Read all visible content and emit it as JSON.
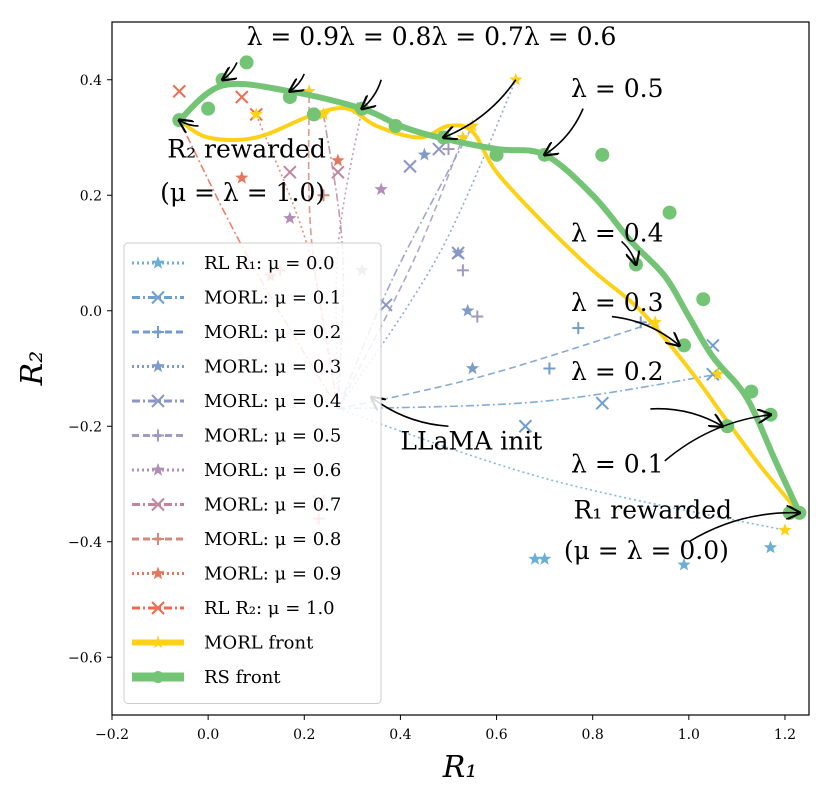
{
  "chart_data": {
    "type": "line",
    "title": "",
    "xlabel": "R₁",
    "ylabel": "R₂",
    "xlim": [
      -0.2,
      1.25
    ],
    "ylim": [
      -0.7,
      0.5
    ],
    "xticks": [
      -0.2,
      0.0,
      0.2,
      0.4,
      0.6,
      0.8,
      1.0,
      1.2
    ],
    "xtick_labels": [
      "−0.2",
      "0.0",
      "0.2",
      "0.4",
      "0.6",
      "0.8",
      "1.0",
      "1.2"
    ],
    "yticks": [
      -0.6,
      -0.4,
      -0.2,
      0.0,
      0.2,
      0.4
    ],
    "ytick_labels": [
      "−0.6",
      "−0.4",
      "−0.2",
      "0.0",
      "0.2",
      "0.4"
    ],
    "grid": false,
    "legend_position": "lower-left",
    "init_point": [
      0.27,
      -0.17
    ],
    "series": [
      {
        "name": "RL R₁: μ = 0.0",
        "color": "#6baed6",
        "dash": "dotted",
        "marker": "star",
        "points": [
          [
            0.68,
            -0.43
          ],
          [
            0.99,
            -0.44
          ],
          [
            1.17,
            -0.41
          ],
          [
            0.7,
            -0.43
          ]
        ],
        "end": [
          1.2,
          -0.38
        ]
      },
      {
        "name": "MORL: μ = 0.1",
        "color": "#6f9fcf",
        "dash": "dashdot",
        "marker": "x",
        "points": [
          [
            0.82,
            -0.16
          ],
          [
            1.05,
            -0.06
          ],
          [
            0.66,
            -0.2
          ],
          [
            1.05,
            -0.11
          ]
        ],
        "end": [
          1.06,
          -0.11
        ]
      },
      {
        "name": "MORL: μ = 0.2",
        "color": "#729ccc",
        "dash": "dashed",
        "marker": "plus",
        "points": [
          [
            0.77,
            -0.03
          ],
          [
            0.71,
            -0.1
          ],
          [
            0.9,
            -0.02
          ]
        ],
        "end": [
          0.93,
          -0.02
        ]
      },
      {
        "name": "MORL: μ = 0.3",
        "color": "#7f9bc9",
        "dash": "dotted",
        "marker": "star",
        "points": [
          [
            0.45,
            0.27
          ],
          [
            0.54,
            0.0
          ],
          [
            0.55,
            -0.1
          ],
          [
            0.52,
            0.1
          ]
        ],
        "end": [
          0.64,
          0.4
        ]
      },
      {
        "name": "MORL: μ = 0.4",
        "color": "#8c96c4",
        "dash": "dashdot",
        "marker": "x",
        "points": [
          [
            0.42,
            0.25
          ],
          [
            0.37,
            0.01
          ],
          [
            0.52,
            0.1
          ],
          [
            0.48,
            0.28
          ]
        ],
        "end": [
          0.55,
          0.32
        ]
      },
      {
        "name": "MORL: μ = 0.5",
        "color": "#a099c0",
        "dash": "dashed",
        "marker": "plus",
        "points": [
          [
            0.5,
            0.28
          ],
          [
            0.53,
            0.07
          ],
          [
            0.56,
            -0.01
          ]
        ],
        "end": [
          0.53,
          0.3
        ]
      },
      {
        "name": "MORL: μ = 0.6",
        "color": "#b08eb5",
        "dash": "dotted",
        "marker": "star",
        "points": [
          [
            0.36,
            0.21
          ],
          [
            0.32,
            0.07
          ],
          [
            0.17,
            0.16
          ],
          [
            0.31,
            0.35
          ]
        ],
        "end": [
          0.32,
          0.35
        ]
      },
      {
        "name": "MORL: μ = 0.7",
        "color": "#c2849c",
        "dash": "dashdot",
        "marker": "x",
        "points": [
          [
            0.27,
            0.24
          ],
          [
            0.17,
            0.24
          ],
          [
            0.23,
            -0.33
          ]
        ],
        "end": [
          0.24,
          0.34
        ]
      },
      {
        "name": "MORL: μ = 0.8",
        "color": "#d6887a",
        "dash": "dashed",
        "marker": "plus",
        "points": [
          [
            0.24,
            0.2
          ],
          [
            0.15,
            0.07
          ],
          [
            0.23,
            -0.36
          ]
        ],
        "end": [
          0.21,
          0.38
        ]
      },
      {
        "name": "MORL: μ = 0.9",
        "color": "#e5775e",
        "dash": "dotted",
        "marker": "star",
        "points": [
          [
            0.27,
            0.26
          ],
          [
            0.07,
            0.23
          ],
          [
            0.13,
            0.06
          ]
        ],
        "end": [
          0.1,
          0.34
        ]
      },
      {
        "name": "RL R₂: μ = 1.0",
        "color": "#ef6a4c",
        "dash": "dashdot",
        "marker": "x",
        "points": [
          [
            -0.06,
            0.38
          ],
          [
            0.07,
            0.37
          ],
          [
            0.1,
            0.34
          ]
        ],
        "end": [
          -0.06,
          0.33
        ]
      }
    ],
    "morl_front": {
      "name": "MORL front",
      "color": "#fcd116",
      "points": [
        [
          -0.06,
          0.33
        ],
        [
          0.0,
          0.3
        ],
        [
          0.1,
          0.3
        ],
        [
          0.22,
          0.34
        ],
        [
          0.29,
          0.35
        ],
        [
          0.35,
          0.32
        ],
        [
          0.44,
          0.3
        ],
        [
          0.5,
          0.32
        ],
        [
          0.55,
          0.31
        ],
        [
          0.6,
          0.24
        ],
        [
          0.7,
          0.15
        ],
        [
          0.8,
          0.07
        ],
        [
          0.9,
          0.0
        ],
        [
          1.0,
          -0.1
        ],
        [
          1.07,
          -0.18
        ],
        [
          1.15,
          -0.27
        ],
        [
          1.23,
          -0.35
        ]
      ]
    },
    "rs_front": {
      "name": "RS front",
      "color": "#74c476",
      "points": [
        [
          -0.06,
          0.33
        ],
        [
          0.03,
          0.39
        ],
        [
          0.17,
          0.38
        ],
        [
          0.32,
          0.35
        ],
        [
          0.4,
          0.32
        ],
        [
          0.48,
          0.3
        ],
        [
          0.6,
          0.28
        ],
        [
          0.7,
          0.27
        ],
        [
          0.8,
          0.2
        ],
        [
          0.88,
          0.12
        ],
        [
          0.95,
          0.06
        ],
        [
          1.0,
          -0.01
        ],
        [
          1.05,
          -0.08
        ],
        [
          1.12,
          -0.15
        ],
        [
          1.18,
          -0.26
        ],
        [
          1.23,
          -0.35
        ]
      ],
      "markers": [
        [
          -0.06,
          0.33
        ],
        [
          0.0,
          0.35
        ],
        [
          0.03,
          0.4
        ],
        [
          0.08,
          0.43
        ],
        [
          0.17,
          0.37
        ],
        [
          0.22,
          0.34
        ],
        [
          0.32,
          0.35
        ],
        [
          0.39,
          0.32
        ],
        [
          0.49,
          0.3
        ],
        [
          0.6,
          0.27
        ],
        [
          0.7,
          0.27
        ],
        [
          0.82,
          0.27
        ],
        [
          0.96,
          0.17
        ],
        [
          0.89,
          0.08
        ],
        [
          1.03,
          0.02
        ],
        [
          0.99,
          -0.06
        ],
        [
          1.13,
          -0.14
        ],
        [
          1.17,
          -0.18
        ],
        [
          1.08,
          -0.2
        ],
        [
          1.21,
          -0.35
        ],
        [
          1.23,
          -0.35
        ]
      ]
    },
    "annotations": [
      {
        "text": "λ = 0.9λ = 0.8λ = 0.7λ = 0.6",
        "at": [
          0.08,
          0.46
        ],
        "arrows": [
          [
            [
              0.06,
              0.43
            ],
            [
              0.03,
              0.4
            ]
          ],
          [
            [
              0.2,
              0.41
            ],
            [
              0.17,
              0.38
            ]
          ],
          [
            [
              0.36,
              0.4
            ],
            [
              0.32,
              0.35
            ]
          ],
          [
            [
              0.64,
              0.4
            ],
            [
              0.49,
              0.3
            ]
          ]
        ]
      },
      {
        "text": "λ = 0.5",
        "at": [
          0.755,
          0.37
        ],
        "arrows": [
          [
            [
              0.78,
              0.35
            ],
            [
              0.7,
              0.27
            ]
          ]
        ]
      },
      {
        "text": "λ = 0.4",
        "at": [
          0.755,
          0.12
        ],
        "arrows": [
          [
            [
              0.86,
              0.12
            ],
            [
              0.89,
              0.08
            ]
          ]
        ]
      },
      {
        "text": "λ = 0.3",
        "at": [
          0.755,
          0.0
        ],
        "arrows": [
          [
            [
              0.84,
              -0.01
            ],
            [
              0.98,
              -0.06
            ]
          ]
        ]
      },
      {
        "text": "λ = 0.2",
        "at": [
          0.755,
          -0.12
        ],
        "arrows": [
          [
            [
              0.92,
              -0.17
            ],
            [
              1.07,
              -0.2
            ]
          ]
        ]
      },
      {
        "text": "λ = 0.1",
        "at": [
          0.755,
          -0.28
        ],
        "arrows": [
          [
            [
              0.95,
              -0.26
            ],
            [
              1.17,
              -0.18
            ]
          ]
        ]
      },
      {
        "text": "R₂ rewarded",
        "at": [
          -0.085,
          0.265
        ],
        "arrows": [
          [
            [
              -0.02,
              0.32
            ],
            [
              -0.06,
              0.33
            ]
          ]
        ]
      },
      {
        "text": "(μ = λ = 1.0)",
        "at": [
          -0.1,
          0.19
        ],
        "arrows": []
      },
      {
        "text": "R₁ rewarded",
        "at": [
          0.76,
          -0.36
        ],
        "arrows": [
          [
            [
              1.0,
              -0.4
            ],
            [
              1.23,
              -0.35
            ]
          ]
        ]
      },
      {
        "text": "(μ = λ = 0.0)",
        "at": [
          0.74,
          -0.43
        ],
        "arrows": []
      },
      {
        "text": "LLaMA init",
        "at": [
          0.4,
          -0.24
        ],
        "arrows": [
          [
            [
              0.5,
              -0.2
            ],
            [
              0.34,
              -0.15
            ]
          ]
        ]
      }
    ]
  }
}
